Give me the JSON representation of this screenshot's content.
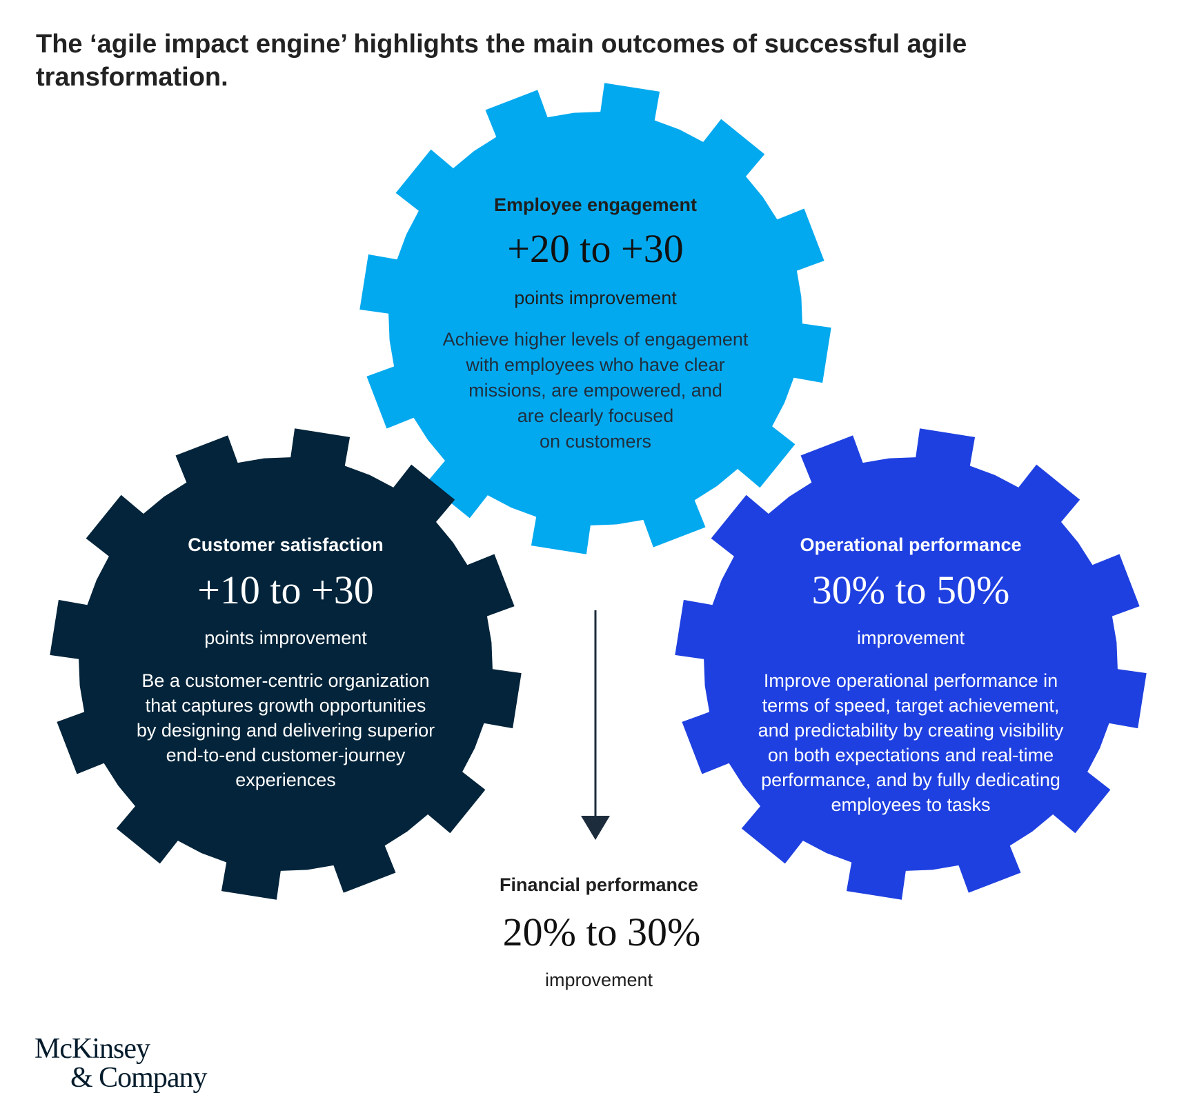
{
  "title_lines": [
    "The ‘agile impact engine’ highlights the main outcomes of successful agile",
    "transformation."
  ],
  "colors": {
    "employee_gear": "#03a9ef",
    "customer_gear": "#03243a",
    "operational_gear": "#1f40e0",
    "text_dark": "#1f1f1f",
    "text_light": "#ffffff",
    "arrow": "#1c2c3c"
  },
  "gears": {
    "employee": {
      "heading": "Employee engagement",
      "value": "+20 to +30",
      "unit": "points improvement",
      "description": [
        "Achieve higher levels of engagement",
        "with employees who have clear",
        "missions, are empowered, and",
        "are clearly focused",
        "on customers"
      ]
    },
    "customer": {
      "heading": "Customer satisfaction",
      "value": "+10 to +30",
      "unit": "points improvement",
      "description": [
        "Be a customer-centric organization",
        "that captures growth opportunities",
        "by designing and delivering superior",
        "end-to-end customer-journey",
        "experiences"
      ]
    },
    "operational": {
      "heading": "Operational performance",
      "value": "30% to 50%",
      "unit": "improvement",
      "description": [
        "Improve operational performance in",
        "terms of speed, target achievement,",
        "and predictability by creating visibility",
        "on both expectations and real-time",
        "performance, and by fully dedicating",
        "employees to tasks"
      ]
    }
  },
  "financial": {
    "heading": "Financial performance",
    "value": "20% to 30%",
    "unit": "improvement"
  },
  "logo_lines": [
    "McKinsey",
    "& Company"
  ]
}
